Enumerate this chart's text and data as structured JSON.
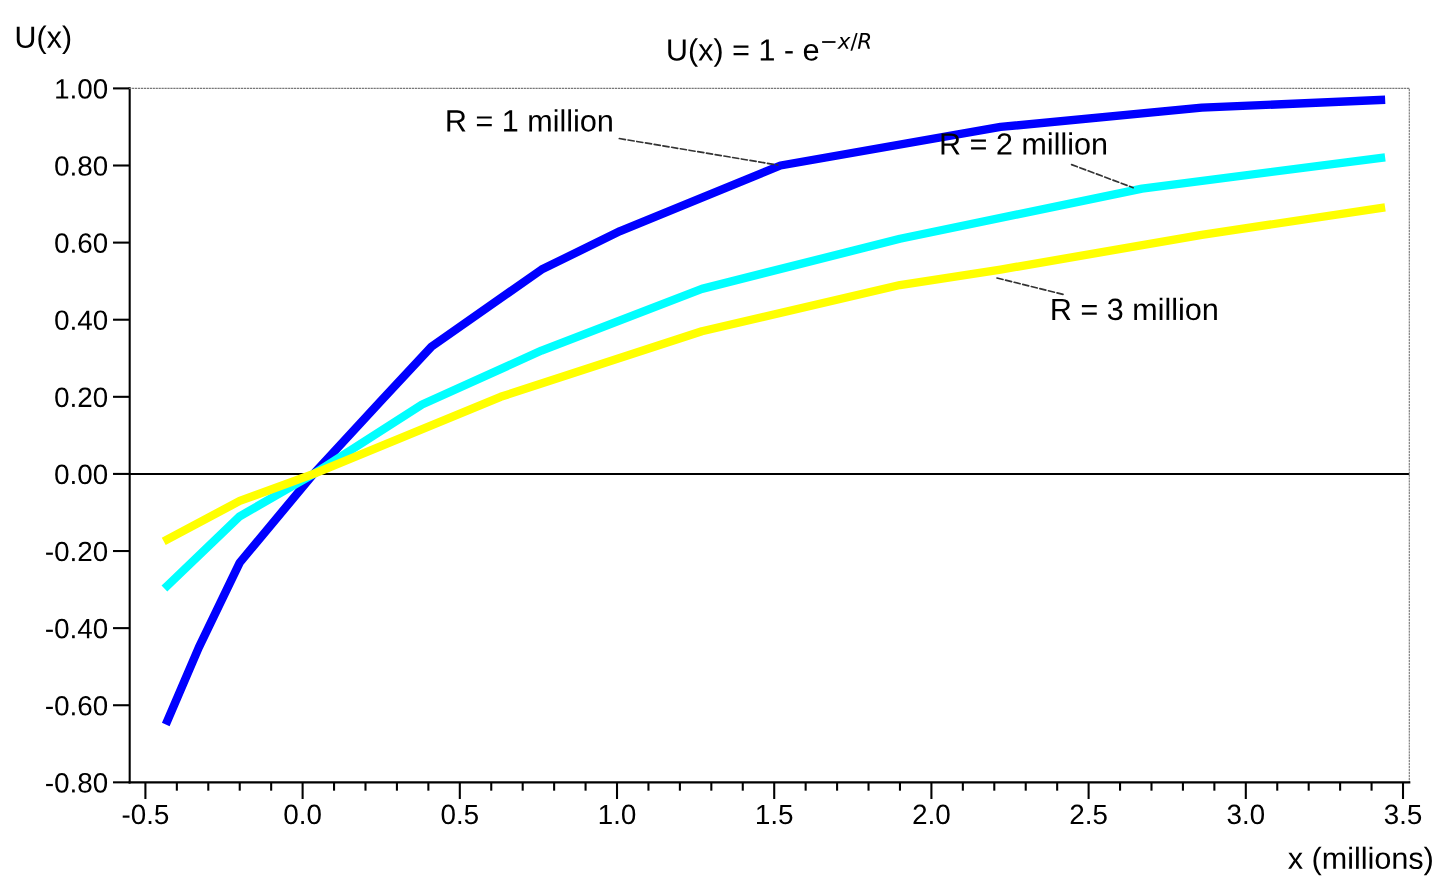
{
  "chart_data": {
    "type": "line",
    "title": "U(x) = 1 - e$^{−x/R}$",
    "xlabel": "x (millions)",
    "ylabel": "U(x)",
    "xlim": [
      -0.55,
      3.52
    ],
    "ylim": [
      -0.8,
      1.0
    ],
    "xticks": [
      {
        "value": -0.5,
        "label": "-0.5"
      },
      {
        "value": -0.4,
        "label": null
      },
      {
        "value": -0.3,
        "label": null
      },
      {
        "value": -0.2,
        "label": null
      },
      {
        "value": -0.1,
        "label": null
      },
      {
        "value": 0,
        "label": "0.0"
      },
      {
        "value": 0.1,
        "label": null
      },
      {
        "value": 0.2,
        "label": null
      },
      {
        "value": 0.3,
        "label": null
      },
      {
        "value": 0.4,
        "label": null
      },
      {
        "value": 0.5,
        "label": "0.5"
      },
      {
        "value": 0.6,
        "label": null
      },
      {
        "value": 0.7,
        "label": null
      },
      {
        "value": 0.8,
        "label": null
      },
      {
        "value": 0.9,
        "label": null
      },
      {
        "value": 1.0,
        "label": "1.0"
      },
      {
        "value": 1.1,
        "label": null
      },
      {
        "value": 1.2,
        "label": null
      },
      {
        "value": 1.3,
        "label": null
      },
      {
        "value": 1.4,
        "label": null
      },
      {
        "value": 1.5,
        "label": "1.5"
      },
      {
        "value": 1.6,
        "label": null
      },
      {
        "value": 1.7,
        "label": null
      },
      {
        "value": 1.8,
        "label": null
      },
      {
        "value": 1.9,
        "label": null
      },
      {
        "value": 2.0,
        "label": "2.0"
      },
      {
        "value": 2.1,
        "label": null
      },
      {
        "value": 2.2,
        "label": null
      },
      {
        "value": 2.3,
        "label": null
      },
      {
        "value": 2.4,
        "label": null
      },
      {
        "value": 2.5,
        "label": "2.5"
      },
      {
        "value": 2.6,
        "label": null
      },
      {
        "value": 2.7,
        "label": null
      },
      {
        "value": 2.8,
        "label": null
      },
      {
        "value": 2.9,
        "label": null
      },
      {
        "value": 3.0,
        "label": "3.0"
      },
      {
        "value": 3.1,
        "label": null
      },
      {
        "value": 3.2,
        "label": null
      },
      {
        "value": 3.3,
        "label": null
      },
      {
        "value": 3.4,
        "label": null
      },
      {
        "value": 3.5,
        "label": "3.5"
      }
    ],
    "yticks": [
      {
        "value": -0.8,
        "label": "-0.80"
      },
      {
        "value": -0.6,
        "label": "-0.60"
      },
      {
        "value": -0.4,
        "label": "-0.40"
      },
      {
        "value": -0.2,
        "label": "-0.20"
      },
      {
        "value": 0,
        "label": "0.00"
      },
      {
        "value": 0.2,
        "label": "0.20"
      },
      {
        "value": 0.4,
        "label": "0.40"
      },
      {
        "value": 0.6,
        "label": "0.60"
      },
      {
        "value": 0.8,
        "label": "0.80"
      },
      {
        "value": 1.0,
        "label": "1.00"
      }
    ],
    "grid": false,
    "legend": false,
    "marker": "none",
    "line_style": "solid",
    "ref_lines": [
      {
        "axis": "y",
        "value": 0,
        "color": "#000000",
        "line_style": "solid"
      }
    ],
    "series": [
      {
        "color": "#0000ff",
        "x": [
          -0.43,
          -0.33,
          -0.2,
          0.035,
          0.25,
          0.41,
          0.76,
          1.01,
          1.52,
          2.22,
          2.86,
          3.43
        ],
        "values": [
          -0.64,
          -0.45,
          -0.23,
          0,
          0.19,
          0.33,
          0.53,
          0.63,
          0.8,
          0.9,
          0.95,
          0.97
        ]
      },
      {
        "color": "#00ffff",
        "x": [
          -0.43,
          -0.2,
          0.035,
          0.38,
          0.76,
          1.27,
          1.9,
          2.67,
          3.43
        ],
        "values": [
          -0.29,
          -0.11,
          0,
          0.18,
          0.32,
          0.48,
          0.61,
          0.74,
          0.82
        ]
      },
      {
        "color": "#ffff00",
        "x": [
          -0.43,
          -0.2,
          0.035,
          0.63,
          1.27,
          1.9,
          2.22,
          2.86,
          3.43
        ],
        "values": [
          -0.17,
          -0.07,
          0,
          0.2,
          0.37,
          0.49,
          0.53,
          0.62,
          0.69
        ]
      }
    ],
    "annotations": [
      {
        "text": "R = 1 million",
        "x": 1.52,
        "y": 0.8
      },
      {
        "text": "R = 2 million",
        "x": 2.65,
        "y": 0.74
      },
      {
        "text": "R = 3 million",
        "x": 2.2,
        "y": 0.51
      }
    ]
  }
}
